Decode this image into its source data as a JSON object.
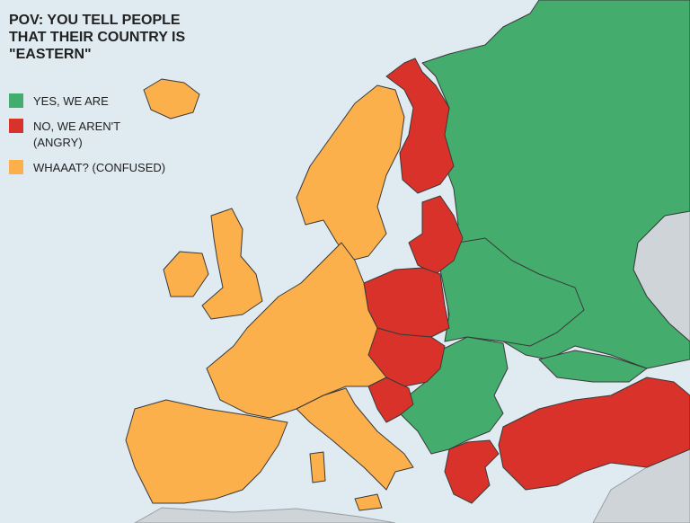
{
  "title_lines": [
    "POV: YOU TELL PEOPLE",
    "THAT THEIR COUNTRY IS",
    "\"EASTERN\""
  ],
  "legend": [
    {
      "lines": [
        "YES, WE ARE"
      ],
      "color": "#44ad6d"
    },
    {
      "lines": [
        "NO, WE AREN'T",
        "(ANGRY)"
      ],
      "color": "#d8322a"
    },
    {
      "lines": [
        "WHAAAT? (CONFUSED)"
      ],
      "color": "#fbb04c"
    }
  ]
}
